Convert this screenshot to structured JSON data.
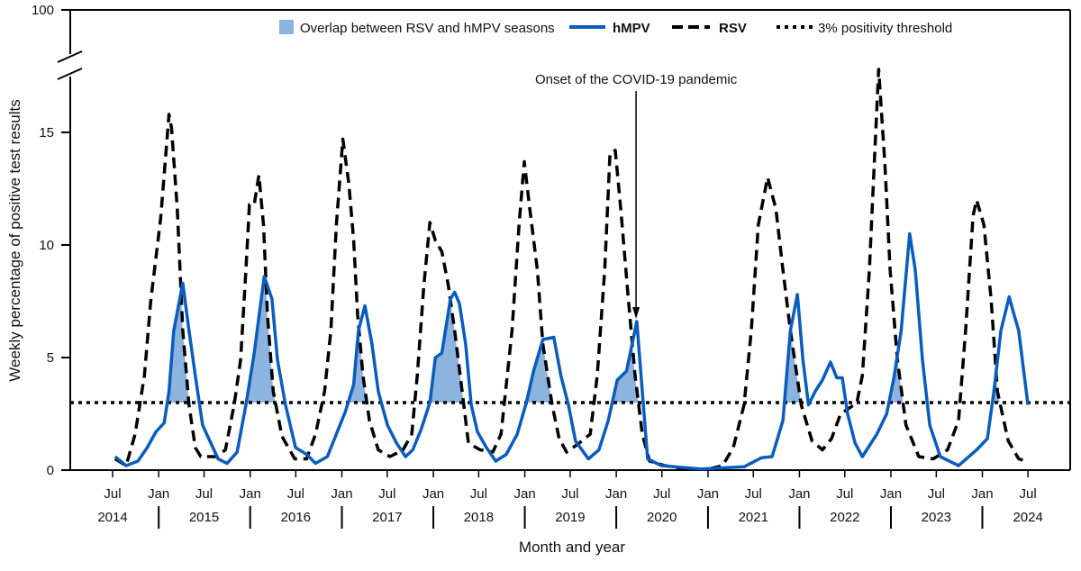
{
  "chart_data": {
    "type": "line",
    "title": "",
    "xlabel": "Month and year",
    "ylabel": "Weekly percentage of positive test results",
    "ylim": [
      0,
      100
    ],
    "y_axis_break": [
      18,
      100
    ],
    "y_ticks": [
      "0",
      "5",
      "10",
      "15",
      "100"
    ],
    "x_range": [
      "2014-07-01",
      "2024-07-01"
    ],
    "x_ticks": [
      {
        "label": "Jul",
        "date": "2014-07-01"
      },
      {
        "label": "Jan",
        "date": "2015-01-01"
      },
      {
        "label": "Jul",
        "date": "2015-07-01"
      },
      {
        "label": "Jan",
        "date": "2016-01-01"
      },
      {
        "label": "Jul",
        "date": "2016-07-01"
      },
      {
        "label": "Jan",
        "date": "2017-01-01"
      },
      {
        "label": "Jul",
        "date": "2017-07-01"
      },
      {
        "label": "Jan",
        "date": "2018-01-01"
      },
      {
        "label": "Jul",
        "date": "2018-07-01"
      },
      {
        "label": "Jan",
        "date": "2019-01-01"
      },
      {
        "label": "Jul",
        "date": "2019-07-01"
      },
      {
        "label": "Jan",
        "date": "2020-01-01"
      },
      {
        "label": "Jul",
        "date": "2020-07-01"
      },
      {
        "label": "Jan",
        "date": "2021-01-01"
      },
      {
        "label": "Jul",
        "date": "2021-07-01"
      },
      {
        "label": "Jan",
        "date": "2022-01-01"
      },
      {
        "label": "Jul",
        "date": "2022-07-01"
      },
      {
        "label": "Jan",
        "date": "2023-01-01"
      },
      {
        "label": "Jul",
        "date": "2023-07-01"
      },
      {
        "label": "Jan",
        "date": "2024-01-01"
      },
      {
        "label": "Jul",
        "date": "2024-07-01"
      }
    ],
    "year_labels": [
      "2014",
      "2015",
      "2016",
      "2017",
      "2018",
      "2019",
      "2020",
      "2021",
      "2022",
      "2023",
      "2024"
    ],
    "grid": false,
    "legend_position": "top",
    "threshold": {
      "name": "3% positivity threshold",
      "value": 3,
      "style": "dotted",
      "color": "#000000"
    },
    "overlap": {
      "name": "Overlap between RSV and hMPV seasons",
      "color": "#8db3df"
    },
    "annotation": {
      "text": "Onset of the COVID-19 pandemic",
      "date": "2020-03-20",
      "style": "arrow"
    },
    "series": [
      {
        "name": "hMPV",
        "color": "#0a5cbd",
        "style": "solid",
        "points": [
          [
            "2014-07-11",
            0.6
          ],
          [
            "2014-08-24",
            0.2
          ],
          [
            "2014-10-10",
            0.4
          ],
          [
            "2014-11-16",
            1.0
          ],
          [
            "2014-12-21",
            1.7
          ],
          [
            "2015-01-23",
            2.1
          ],
          [
            "2015-02-11",
            3.5
          ],
          [
            "2015-03-02",
            6.2
          ],
          [
            "2015-04-07",
            8.3
          ],
          [
            "2015-05-02",
            6.2
          ],
          [
            "2015-05-27",
            4.2
          ],
          [
            "2015-06-25",
            2.0
          ],
          [
            "2015-07-24",
            1.3
          ],
          [
            "2015-08-26",
            0.5
          ],
          [
            "2015-10-01",
            0.3
          ],
          [
            "2015-11-10",
            0.8
          ],
          [
            "2015-12-15",
            2.9
          ],
          [
            "2016-01-17",
            5.2
          ],
          [
            "2016-02-26",
            8.6
          ],
          [
            "2016-03-28",
            7.6
          ],
          [
            "2016-04-19",
            4.9
          ],
          [
            "2016-05-21",
            2.9
          ],
          [
            "2016-06-30",
            1.0
          ],
          [
            "2016-08-13",
            0.7
          ],
          [
            "2016-09-18",
            0.3
          ],
          [
            "2016-11-04",
            0.6
          ],
          [
            "2016-12-10",
            1.6
          ],
          [
            "2017-01-15",
            2.6
          ],
          [
            "2017-02-17",
            3.8
          ],
          [
            "2017-03-08",
            6.2
          ],
          [
            "2017-04-03",
            7.3
          ],
          [
            "2017-05-01",
            5.6
          ],
          [
            "2017-05-26",
            3.5
          ],
          [
            "2017-07-02",
            2.0
          ],
          [
            "2017-08-07",
            1.2
          ],
          [
            "2017-09-12",
            0.6
          ],
          [
            "2017-10-11",
            0.9
          ],
          [
            "2017-11-13",
            1.8
          ],
          [
            "2017-12-18",
            3.0
          ],
          [
            "2018-01-09",
            5.0
          ],
          [
            "2018-02-04",
            5.2
          ],
          [
            "2018-03-10",
            7.6
          ],
          [
            "2018-03-27",
            7.9
          ],
          [
            "2018-04-15",
            7.4
          ],
          [
            "2018-05-10",
            5.6
          ],
          [
            "2018-06-01",
            2.9
          ],
          [
            "2018-06-26",
            1.7
          ],
          [
            "2018-08-01",
            1.0
          ],
          [
            "2018-09-07",
            0.4
          ],
          [
            "2018-10-19",
            0.7
          ],
          [
            "2018-12-02",
            1.6
          ],
          [
            "2019-01-07",
            3.0
          ],
          [
            "2019-02-05",
            4.4
          ],
          [
            "2019-03-14",
            5.8
          ],
          [
            "2019-04-27",
            5.9
          ],
          [
            "2019-05-25",
            4.2
          ],
          [
            "2019-06-24",
            2.9
          ],
          [
            "2019-07-22",
            1.3
          ],
          [
            "2019-09-12",
            0.5
          ],
          [
            "2019-10-24",
            0.9
          ],
          [
            "2019-11-30",
            2.2
          ],
          [
            "2020-01-05",
            4.0
          ],
          [
            "2020-02-11",
            4.4
          ],
          [
            "2020-03-23",
            6.6
          ],
          [
            "2020-04-14",
            3.5
          ],
          [
            "2020-05-05",
            0.5
          ],
          [
            "2020-06-29",
            0.2
          ],
          [
            "2020-12-05",
            0.05
          ],
          [
            "2021-05-25",
            0.15
          ],
          [
            "2021-08-02",
            0.55
          ],
          [
            "2021-09-14",
            0.6
          ],
          [
            "2021-10-27",
            2.2
          ],
          [
            "2021-11-26",
            6.2
          ],
          [
            "2021-12-24",
            7.8
          ],
          [
            "2022-01-15",
            4.9
          ],
          [
            "2022-02-06",
            2.9
          ],
          [
            "2022-03-05",
            3.5
          ],
          [
            "2022-04-03",
            4.0
          ],
          [
            "2022-05-05",
            4.8
          ],
          [
            "2022-05-30",
            4.1
          ],
          [
            "2022-06-21",
            4.1
          ],
          [
            "2022-07-12",
            2.5
          ],
          [
            "2022-08-11",
            1.2
          ],
          [
            "2022-09-09",
            0.6
          ],
          [
            "2022-11-06",
            1.6
          ],
          [
            "2022-12-15",
            2.5
          ],
          [
            "2023-01-13",
            4.1
          ],
          [
            "2023-02-11",
            6.2
          ],
          [
            "2023-03-17",
            10.5
          ],
          [
            "2023-04-08",
            8.9
          ],
          [
            "2023-05-07",
            4.9
          ],
          [
            "2023-06-05",
            2.0
          ],
          [
            "2023-07-17",
            0.6
          ],
          [
            "2023-09-28",
            0.2
          ],
          [
            "2023-12-09",
            0.9
          ],
          [
            "2024-01-21",
            1.4
          ],
          [
            "2024-02-16",
            3.5
          ],
          [
            "2024-03-15",
            6.2
          ],
          [
            "2024-04-17",
            7.7
          ],
          [
            "2024-05-04",
            7.0
          ],
          [
            "2024-05-25",
            6.2
          ],
          [
            "2024-07-01",
            2.9
          ]
        ]
      },
      {
        "name": "RSV",
        "color": "#000000",
        "style": "dashed",
        "points": [
          [
            "2014-07-11",
            0.5
          ],
          [
            "2014-08-24",
            0.2
          ],
          [
            "2014-09-29",
            1.6
          ],
          [
            "2014-11-05",
            4.2
          ],
          [
            "2014-11-30",
            7.5
          ],
          [
            "2015-01-09",
            11.2
          ],
          [
            "2015-02-11",
            15.8
          ],
          [
            "2015-02-21",
            15.2
          ],
          [
            "2015-03-16",
            11.6
          ],
          [
            "2015-04-07",
            6.2
          ],
          [
            "2015-05-02",
            2.9
          ],
          [
            "2015-05-27",
            1.0
          ],
          [
            "2015-06-18",
            0.6
          ],
          [
            "2015-08-18",
            0.6
          ],
          [
            "2015-09-24",
            0.9
          ],
          [
            "2015-10-29",
            2.9
          ],
          [
            "2015-11-24",
            4.9
          ],
          [
            "2015-12-15",
            8.9
          ],
          [
            "2015-12-29",
            11.8
          ],
          [
            "2016-01-17",
            11.8
          ],
          [
            "2016-02-05",
            13.1
          ],
          [
            "2016-02-23",
            10.9
          ],
          [
            "2016-03-10",
            6.9
          ],
          [
            "2016-04-02",
            3.5
          ],
          [
            "2016-05-07",
            1.5
          ],
          [
            "2016-06-27",
            0.5
          ],
          [
            "2016-08-13",
            0.5
          ],
          [
            "2016-09-18",
            1.6
          ],
          [
            "2016-10-24",
            3.5
          ],
          [
            "2016-11-18",
            6.2
          ],
          [
            "2016-12-10",
            10.9
          ],
          [
            "2017-01-05",
            14.7
          ],
          [
            "2017-01-29",
            12.7
          ],
          [
            "2017-02-17",
            10.2
          ],
          [
            "2017-03-05",
            6.9
          ],
          [
            "2017-03-26",
            4.2
          ],
          [
            "2017-04-21",
            2.2
          ],
          [
            "2017-05-26",
            0.9
          ],
          [
            "2017-07-12",
            0.6
          ],
          [
            "2017-09-02",
            0.9
          ],
          [
            "2017-10-07",
            1.6
          ],
          [
            "2017-10-29",
            4.2
          ],
          [
            "2017-11-24",
            8.2
          ],
          [
            "2017-12-18",
            11.0
          ],
          [
            "2018-01-09",
            10.2
          ],
          [
            "2018-02-04",
            9.7
          ],
          [
            "2018-03-02",
            8.2
          ],
          [
            "2018-03-27",
            6.2
          ],
          [
            "2018-04-26",
            3.5
          ],
          [
            "2018-05-21",
            1.2
          ],
          [
            "2018-07-07",
            0.9
          ],
          [
            "2018-08-26",
            0.8
          ],
          [
            "2018-09-28",
            1.6
          ],
          [
            "2018-11-11",
            6.2
          ],
          [
            "2018-12-09",
            10.9
          ],
          [
            "2018-12-30",
            13.7
          ],
          [
            "2019-01-21",
            11.6
          ],
          [
            "2019-02-20",
            8.9
          ],
          [
            "2019-03-14",
            5.6
          ],
          [
            "2019-04-20",
            2.9
          ],
          [
            "2019-05-18",
            1.4
          ],
          [
            "2019-06-17",
            0.8
          ],
          [
            "2019-08-06",
            1.2
          ],
          [
            "2019-09-19",
            1.6
          ],
          [
            "2019-10-17",
            4.2
          ],
          [
            "2019-11-16",
            8.9
          ],
          [
            "2019-12-07",
            14.1
          ],
          [
            "2019-12-28",
            14.2
          ],
          [
            "2020-01-19",
            11.6
          ],
          [
            "2020-02-18",
            7.6
          ],
          [
            "2020-03-16",
            4.2
          ],
          [
            "2020-04-14",
            1.6
          ],
          [
            "2020-05-13",
            0.4
          ],
          [
            "2020-07-13",
            0.2
          ],
          [
            "2020-10-08",
            0.05
          ],
          [
            "2021-01-03",
            0.05
          ],
          [
            "2021-02-28",
            0.2
          ],
          [
            "2021-04-12",
            1.0
          ],
          [
            "2021-05-25",
            2.9
          ],
          [
            "2021-06-23",
            6.2
          ],
          [
            "2021-07-21",
            10.9
          ],
          [
            "2021-08-27",
            13.0
          ],
          [
            "2021-09-29",
            11.6
          ],
          [
            "2021-10-27",
            8.9
          ],
          [
            "2021-11-26",
            6.2
          ],
          [
            "2022-01-08",
            2.9
          ],
          [
            "2022-02-20",
            1.3
          ],
          [
            "2022-04-03",
            0.9
          ],
          [
            "2022-05-09",
            1.4
          ],
          [
            "2022-06-14",
            2.5
          ],
          [
            "2022-07-12",
            2.7
          ],
          [
            "2022-08-18",
            3.0
          ],
          [
            "2022-09-09",
            4.2
          ],
          [
            "2022-10-07",
            8.9
          ],
          [
            "2022-10-29",
            14.2
          ],
          [
            "2022-11-13",
            17.8
          ],
          [
            "2022-12-08",
            13.6
          ],
          [
            "2022-12-29",
            8.9
          ],
          [
            "2023-01-27",
            4.9
          ],
          [
            "2023-03-02",
            2.0
          ],
          [
            "2023-04-22",
            0.6
          ],
          [
            "2023-06-19",
            0.5
          ],
          [
            "2023-08-15",
            0.9
          ],
          [
            "2023-09-28",
            2.2
          ],
          [
            "2023-10-26",
            6.2
          ],
          [
            "2023-11-25",
            11.3
          ],
          [
            "2023-12-09",
            12.0
          ],
          [
            "2024-01-07",
            10.9
          ],
          [
            "2024-02-05",
            7.6
          ],
          [
            "2024-03-01",
            3.5
          ],
          [
            "2024-04-13",
            1.3
          ],
          [
            "2024-05-25",
            0.5
          ],
          [
            "2024-06-24",
            0.4
          ]
        ]
      }
    ]
  }
}
